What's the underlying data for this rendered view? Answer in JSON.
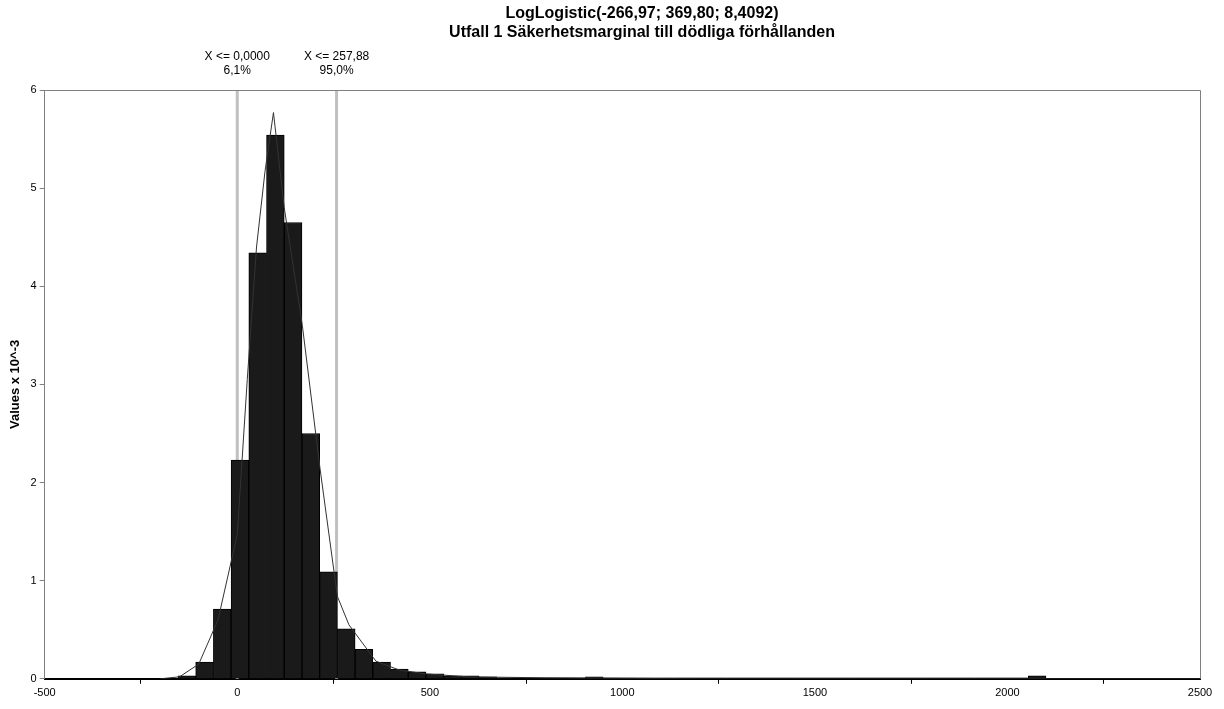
{
  "chart_data": {
    "type": "histogram",
    "title": "LogLogistic(-266,97; 369,80; 8,4092)",
    "subtitle": "Utfall 1 Säkerhetsmarginal till dödliga förhållanden",
    "ylabel": "Values x 10^-3",
    "series": [
      {
        "color": "#1a1a1a",
        "bins": [
          -154,
          -108,
          -62,
          -16,
          30,
          76,
          122,
          168,
          214,
          260,
          306,
          352,
          398,
          444,
          490,
          536,
          582,
          628,
          674,
          720,
          766,
          812,
          858,
          904,
          950,
          996,
          1042,
          1088,
          1134,
          1180,
          1226,
          1272,
          1318,
          1364,
          1410,
          1456,
          1502,
          1548,
          1594,
          1640,
          1686,
          1732,
          1778,
          1824,
          1870,
          1916,
          1962,
          2008,
          2054,
          2100
        ],
        "values": [
          0.03,
          0.17,
          0.71,
          2.23,
          4.34,
          5.54,
          4.65,
          2.5,
          1.09,
          0.51,
          0.3,
          0.17,
          0.1,
          0.07,
          0.05,
          0.03,
          0.03,
          0.02,
          0.01,
          0.01,
          0.01,
          0.01,
          0.01,
          0.02,
          0.01,
          0.01,
          0.01,
          0.01,
          0.01,
          0.01,
          0.01,
          0.01,
          0.01,
          0.01,
          0.01,
          0.01,
          0.01,
          0.01,
          0.01,
          0.01,
          0.01,
          0.01,
          0.01,
          0.01,
          0.01,
          0.01,
          0.01,
          0.01,
          0.03
        ]
      },
      {
        "type": "line",
        "color": "#333333",
        "x": [
          -200,
          -150,
          -100,
          -50,
          0,
          26,
          50,
          72,
          94,
          122,
          169,
          215,
          260,
          290,
          360,
          420,
          490,
          600,
          800,
          1200,
          2500
        ],
        "values": [
          0,
          0.02,
          0.15,
          0.6,
          1.47,
          3.05,
          4.4,
          5.17,
          5.77,
          4.8,
          3.6,
          2.14,
          0.84,
          0.55,
          0.18,
          0.09,
          0.05,
          0.02,
          0.01,
          0,
          0
        ]
      }
    ],
    "xlim": [
      -500,
      2500
    ],
    "xticks": [
      -500,
      0,
      500,
      1000,
      1500,
      2000,
      2500
    ],
    "ylim": [
      0,
      6
    ],
    "yticks": [
      0,
      1,
      2,
      3,
      4,
      5,
      6
    ],
    "grid": false,
    "legend": false,
    "ref_lines": [
      {
        "axis": "x",
        "value": 0,
        "label": "X <= 0,0000\n6,1%",
        "color": "#c0c0c0"
      },
      {
        "axis": "x",
        "value": 257.88,
        "label": "X <= 257,88\n95,0%",
        "color": "#c0c0c0"
      }
    ]
  }
}
